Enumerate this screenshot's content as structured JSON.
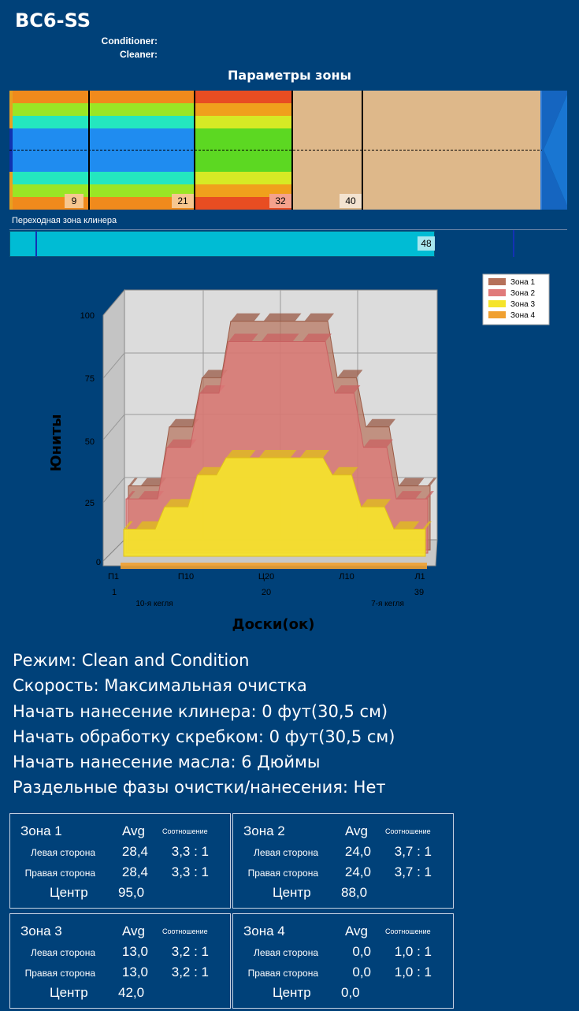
{
  "header": {
    "title": "BC6-SS",
    "conditioner_label": "Conditioner:",
    "cleaner_label": "Cleaner:",
    "section_title": "Параметры зоны"
  },
  "zone_strip": {
    "markers": [
      "9",
      "21",
      "32",
      "40"
    ],
    "colors": {
      "orange": "#f08a1c",
      "yellowgreen": "#9ae625",
      "aqua": "#24e7bf",
      "blue": "#1f8cf0",
      "green": "#5cd822",
      "red": "#e84d22",
      "tan": "#deb88a",
      "dark_blue": "#1565c0"
    }
  },
  "transition": {
    "label": "Переходная зона клинера",
    "value": "48"
  },
  "chart_data": {
    "type": "area",
    "ylabel": "Юниты",
    "xlabel": "Доски(ок)",
    "ylim": [
      0,
      100
    ],
    "yticks": [
      "100",
      "75",
      "50",
      "25",
      "0"
    ],
    "x_tick_labels": [
      "П1",
      "П10",
      "Ц20",
      "Л10",
      "Л1"
    ],
    "x_numbers": [
      "1",
      "20",
      "39"
    ],
    "x_notes": [
      "10-я кегля",
      "7-я кегля"
    ],
    "legend": [
      {
        "name": "Зона 1",
        "color": "#b5715a"
      },
      {
        "name": "Зона 2",
        "color": "#e07a7a"
      },
      {
        "name": "Зона 3",
        "color": "#f5e42a"
      },
      {
        "name": "Зона 4",
        "color": "#f0a030"
      }
    ],
    "series": [
      {
        "name": "Зона 1",
        "x": [
          1,
          4,
          8,
          12,
          15,
          20,
          25,
          28,
          32,
          36,
          39
        ],
        "values": [
          28,
          28,
          52,
          72,
          95,
          95,
          95,
          72,
          52,
          28,
          28
        ]
      },
      {
        "name": "Зона 2",
        "x": [
          1,
          4,
          8,
          12,
          15,
          20,
          25,
          28,
          32,
          36,
          39
        ],
        "values": [
          24,
          24,
          45,
          67,
          88,
          88,
          88,
          67,
          45,
          24,
          24
        ]
      },
      {
        "name": "Зона 3",
        "x": [
          1,
          4,
          8,
          12,
          15,
          20,
          25,
          28,
          32,
          36,
          39
        ],
        "values": [
          13,
          13,
          22,
          35,
          42,
          42,
          42,
          35,
          22,
          13,
          13
        ]
      },
      {
        "name": "Зона 4",
        "x": [
          1,
          39
        ],
        "values": [
          0,
          0
        ]
      }
    ]
  },
  "info": {
    "mode": "Режим: Clean and Condition",
    "speed": "Скорость: Максимальная очистка",
    "cleaner_start": "Начать нанесение клинера: 0 фут(30,5 см)",
    "squeegee_start": "Начать обработку скребком: 0 фут(30,5 см)",
    "oil_start": "Начать нанесение масла: 6 Дюймы",
    "separate_phases": "Раздельные фазы очистки/нанесения: Нет"
  },
  "zones": [
    {
      "name": "Зона 1",
      "avg_label": "Avg",
      "ratio_label": "Соотношение",
      "left_label": "Левая сторона",
      "left_avg": "28,4",
      "left_ratio": "3,3 : 1",
      "right_label": "Правая сторона",
      "right_avg": "28,4",
      "right_ratio": "3,3 : 1",
      "center_label": "Центр",
      "center_val": "95,0"
    },
    {
      "name": "Зона 2",
      "avg_label": "Avg",
      "ratio_label": "Соотношение",
      "left_label": "Левая сторона",
      "left_avg": "24,0",
      "left_ratio": "3,7 : 1",
      "right_label": "Правая сторона",
      "right_avg": "24,0",
      "right_ratio": "3,7 : 1",
      "center_label": "Центр",
      "center_val": "88,0"
    },
    {
      "name": "Зона 3",
      "avg_label": "Avg",
      "ratio_label": "Соотношение",
      "left_label": "Левая сторона",
      "left_avg": "13,0",
      "left_ratio": "3,2 : 1",
      "right_label": "Правая сторона",
      "right_avg": "13,0",
      "right_ratio": "3,2 : 1",
      "center_label": "Центр",
      "center_val": "42,0"
    },
    {
      "name": "Зона 4",
      "avg_label": "Avg",
      "ratio_label": "Соотношение",
      "left_label": "Левая сторона",
      "left_avg": "0,0",
      "left_ratio": "1,0 : 1",
      "right_label": "Правая сторона",
      "right_avg": "0,0",
      "right_ratio": "1,0 : 1",
      "center_label": "Центр",
      "center_val": "0,0"
    }
  ]
}
